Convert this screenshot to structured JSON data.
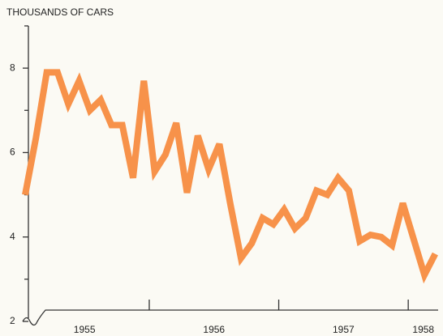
{
  "chart_data": {
    "type": "line",
    "title": "THOUSANDS OF CARS",
    "categories": [
      null,
      null,
      null,
      null,
      null,
      null,
      null,
      null,
      null,
      null,
      null,
      null,
      null,
      null,
      null,
      null,
      null,
      null,
      null,
      null,
      null,
      null,
      null,
      null,
      null,
      null,
      null,
      null,
      null,
      null,
      null,
      null,
      null,
      null,
      null,
      null,
      null,
      null,
      null
    ],
    "year_labels": [
      "1955",
      "1956",
      "1957",
      "1958"
    ],
    "series": [
      {
        "color": "#f7924a",
        "values": [
          5.0,
          6.35,
          7.9,
          7.9,
          7.15,
          7.7,
          7.0,
          7.25,
          6.65,
          6.65,
          5.4,
          7.7,
          5.55,
          5.95,
          6.7,
          5.05,
          6.4,
          5.6,
          6.2,
          4.8,
          3.5,
          3.85,
          4.45,
          4.3,
          4.65,
          4.2,
          4.45,
          5.1,
          5.0,
          5.4,
          5.1,
          3.9,
          4.05,
          4.0,
          3.8,
          4.8,
          3.95,
          3.1,
          3.6
        ]
      }
    ],
    "ylim": [
      2,
      9
    ],
    "yticks": [
      2,
      4,
      6,
      8
    ],
    "yminorticks": [
      3,
      5,
      7,
      9
    ]
  }
}
